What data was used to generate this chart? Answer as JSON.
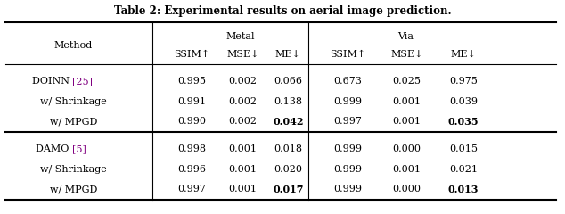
{
  "title": "Table 2: Experimental results on aerial image prediction.",
  "title_color": "#000000",
  "background_color": "#ffffff",
  "groups": [
    {
      "rows": [
        {
          "method_base": "DOINN ",
          "ref": "25",
          "ref_color": "#800080",
          "metal_ssim": "0.995",
          "metal_mse": "0.002",
          "metal_me": "0.066",
          "via_ssim": "0.673",
          "via_mse": "0.025",
          "via_me": "0.975",
          "bold": []
        },
        {
          "method_base": "w/ Shrinkage",
          "ref": null,
          "ref_color": null,
          "metal_ssim": "0.991",
          "metal_mse": "0.002",
          "metal_me": "0.138",
          "via_ssim": "0.999",
          "via_mse": "0.001",
          "via_me": "0.039",
          "bold": []
        },
        {
          "method_base": "w/ MPGD",
          "ref": null,
          "ref_color": null,
          "metal_ssim": "0.990",
          "metal_mse": "0.002",
          "metal_me": "0.042",
          "via_ssim": "0.997",
          "via_mse": "0.001",
          "via_me": "0.035",
          "bold": [
            "metal_me",
            "via_me"
          ]
        }
      ]
    },
    {
      "rows": [
        {
          "method_base": "DAMO ",
          "ref": "5",
          "ref_color": "#800080",
          "metal_ssim": "0.998",
          "metal_mse": "0.001",
          "metal_me": "0.018",
          "via_ssim": "0.999",
          "via_mse": "0.000",
          "via_me": "0.015",
          "bold": []
        },
        {
          "method_base": "w/ Shrinkage",
          "ref": null,
          "ref_color": null,
          "metal_ssim": "0.996",
          "metal_mse": "0.001",
          "metal_me": "0.020",
          "via_ssim": "0.999",
          "via_mse": "0.001",
          "via_me": "0.021",
          "bold": []
        },
        {
          "method_base": "w/ MPGD",
          "ref": null,
          "ref_color": null,
          "metal_ssim": "0.997",
          "metal_mse": "0.001",
          "metal_me": "0.017",
          "via_ssim": "0.999",
          "via_mse": "0.000",
          "via_me": "0.013",
          "bold": [
            "metal_me",
            "via_me"
          ]
        }
      ]
    }
  ]
}
